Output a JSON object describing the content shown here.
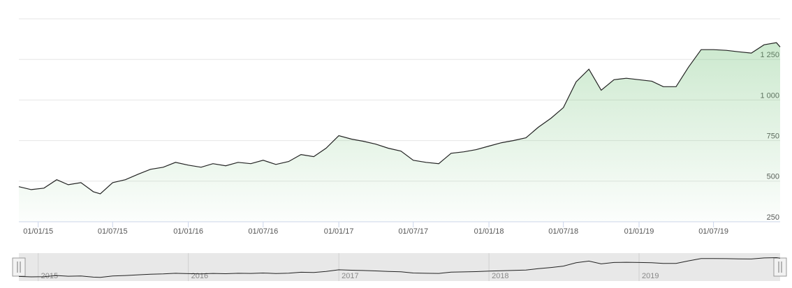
{
  "chart_data": {
    "type": "line",
    "x": [
      "2014-11-15",
      "2014-12-15",
      "2015-01-15",
      "2015-02-15",
      "2015-03-15",
      "2015-04-15",
      "2015-05-15",
      "2015-06-01",
      "2015-07-01",
      "2015-08-01",
      "2015-09-01",
      "2015-10-01",
      "2015-11-01",
      "2015-12-01",
      "2016-01-01",
      "2016-02-01",
      "2016-03-01",
      "2016-04-01",
      "2016-05-01",
      "2016-06-01",
      "2016-07-01",
      "2016-08-01",
      "2016-09-01",
      "2016-10-01",
      "2016-11-01",
      "2016-12-01",
      "2017-01-01",
      "2017-02-01",
      "2017-03-01",
      "2017-04-01",
      "2017-05-01",
      "2017-06-01",
      "2017-07-01",
      "2017-08-01",
      "2017-09-01",
      "2017-10-01",
      "2017-11-01",
      "2017-12-01",
      "2018-01-01",
      "2018-02-01",
      "2018-03-01",
      "2018-04-01",
      "2018-05-01",
      "2018-06-01",
      "2018-07-01",
      "2018-08-01",
      "2018-09-01",
      "2018-10-01",
      "2018-11-01",
      "2018-12-01",
      "2019-01-01",
      "2019-02-01",
      "2019-03-01",
      "2019-04-01",
      "2019-05-01",
      "2019-06-01",
      "2019-07-01",
      "2019-08-01",
      "2019-09-01",
      "2019-10-01",
      "2019-11-01",
      "2019-12-01",
      "2019-12-10"
    ],
    "series": [
      {
        "color": "#222222",
        "values": [
          466,
          448,
          457,
          509,
          478,
          491,
          435,
          422,
          491,
          509,
          543,
          573,
          586,
          616,
          599,
          586,
          608,
          595,
          616,
          608,
          629,
          603,
          621,
          664,
          651,
          703,
          780,
          759,
          746,
          728,
          703,
          685,
          629,
          616,
          608,
          672,
          681,
          694,
          716,
          737,
          750,
          767,
          832,
          888,
          953,
          1112,
          1190,
          1060,
          1125,
          1134,
          1125,
          1116,
          1082,
          1082,
          1202,
          1310,
          1310,
          1306,
          1297,
          1289,
          1340,
          1353,
          1327
        ]
      }
    ],
    "area_color": "#6cbf73",
    "xlim": [
      "2014-11-15",
      "2019-12-10"
    ],
    "xticks": [
      {
        "value": "2015-01-01",
        "label": "01/01/15"
      },
      {
        "value": "2015-07-01",
        "label": "01/07/15"
      },
      {
        "value": "2016-01-01",
        "label": "01/01/16"
      },
      {
        "value": "2016-07-01",
        "label": "01/07/16"
      },
      {
        "value": "2017-01-01",
        "label": "01/01/17"
      },
      {
        "value": "2017-07-01",
        "label": "01/07/17"
      },
      {
        "value": "2018-01-01",
        "label": "01/01/18"
      },
      {
        "value": "2018-07-01",
        "label": "01/07/18"
      },
      {
        "value": "2019-01-01",
        "label": "01/01/19"
      },
      {
        "value": "2019-07-01",
        "label": "01/07/19"
      }
    ],
    "ylim": [
      250,
      1500
    ],
    "yticks": [
      250,
      500,
      750,
      {
        "value": 1000,
        "label": "1 000"
      },
      {
        "value": 1250,
        "label": "1 250"
      }
    ],
    "grid": true,
    "navigator_ticks": [
      {
        "value": "2015-01-01",
        "label": "2015"
      },
      {
        "value": "2016-01-01",
        "label": "2016"
      },
      {
        "value": "2017-01-01",
        "label": "2017"
      },
      {
        "value": "2018-01-01",
        "label": "2018"
      },
      {
        "value": "2019-01-01",
        "label": "2019"
      }
    ]
  }
}
